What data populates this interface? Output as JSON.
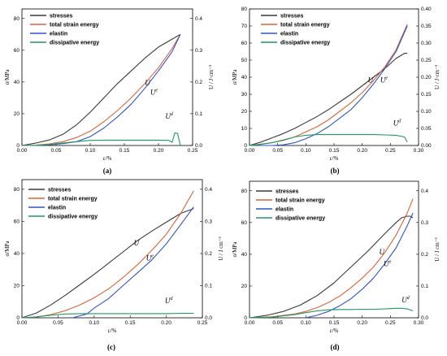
{
  "chart_data": [
    {
      "panel_label": "(a)",
      "type": "line",
      "x_label": "ε/%",
      "y_left_label": "σ/MPa",
      "y_right_label": "U / J·cm⁻³",
      "x_ticks": [
        0.0,
        0.05,
        0.1,
        0.15,
        0.2,
        0.25
      ],
      "x_tick_labels": [
        "0.00",
        "0.05",
        "0.10",
        "0.15",
        "0.20",
        "0.25"
      ],
      "y_left_ticks": [
        0,
        20,
        40,
        60,
        80
      ],
      "y_left_tick_labels": [
        "0",
        "20",
        "40",
        "60",
        "80"
      ],
      "y_right_ticks": [
        0.0,
        0.1,
        0.2,
        0.3,
        0.4
      ],
      "y_right_tick_labels": [
        "0.0",
        "0.1",
        "0.2",
        "0.3",
        "0.4"
      ],
      "xlim": [
        0,
        0.25
      ],
      "ylim_left": [
        0,
        86
      ],
      "ylim_right": [
        0,
        0.43
      ],
      "legend": [
        "stresses",
        "total strain energy",
        "elastin",
        "dissipative energy"
      ],
      "curve_labels": [
        {
          "text": "U",
          "x": 0.18,
          "y": 0.19
        },
        {
          "text": "Ue",
          "x": 0.188,
          "y": 0.16
        },
        {
          "text": "Ud",
          "x": 0.21,
          "y": 0.084
        }
      ],
      "series": [
        {
          "name": "stresses",
          "axis": "left",
          "color": "#3a3a3a",
          "x": [
            0,
            0.02,
            0.04,
            0.06,
            0.08,
            0.1,
            0.12,
            0.14,
            0.16,
            0.18,
            0.2,
            0.22,
            0.232
          ],
          "y": [
            0,
            1.5,
            3.5,
            7,
            13,
            21,
            30,
            39,
            47,
            55,
            62,
            67,
            70
          ]
        },
        {
          "name": "total strain energy",
          "axis": "right",
          "color": "#d9643a",
          "x": [
            0,
            0.02,
            0.04,
            0.06,
            0.08,
            0.1,
            0.12,
            0.14,
            0.16,
            0.18,
            0.2,
            0.22,
            0.232
          ],
          "y": [
            0,
            0.001,
            0.005,
            0.012,
            0.025,
            0.045,
            0.075,
            0.11,
            0.15,
            0.195,
            0.245,
            0.305,
            0.35
          ]
        },
        {
          "name": "elastin",
          "axis": "right",
          "color": "#2f55c9",
          "x": [
            0,
            0.02,
            0.04,
            0.06,
            0.08,
            0.1,
            0.12,
            0.14,
            0.16,
            0.18,
            0.2,
            0.22,
            0.232
          ],
          "y": [
            0,
            0.0,
            0.002,
            0.006,
            0.012,
            0.028,
            0.055,
            0.09,
            0.13,
            0.18,
            0.235,
            0.295,
            0.35
          ]
        },
        {
          "name": "dissipative energy",
          "axis": "right",
          "color": "#1f9a60",
          "x": [
            0,
            0.02,
            0.04,
            0.06,
            0.08,
            0.1,
            0.12,
            0.14,
            0.16,
            0.18,
            0.2,
            0.215,
            0.22,
            0.224,
            0.228,
            0.232
          ],
          "y": [
            0,
            0.0,
            0.003,
            0.008,
            0.012,
            0.016,
            0.017,
            0.017,
            0.017,
            0.017,
            0.017,
            0.016,
            0.01,
            0.04,
            0.038,
            0.0
          ]
        }
      ]
    },
    {
      "panel_label": "(b)",
      "type": "line",
      "x_label": "ε/%",
      "y_left_label": "σ/MPa",
      "y_right_label": "U / J·cm⁻³",
      "x_ticks": [
        0.0,
        0.05,
        0.1,
        0.15,
        0.2,
        0.25,
        0.3
      ],
      "x_tick_labels": [
        "0.00",
        "0.05",
        "0.10",
        "0.15",
        "0.20",
        "0.25",
        "0.30"
      ],
      "y_left_ticks": [
        0,
        10,
        20,
        30,
        40,
        50,
        60,
        70,
        80
      ],
      "y_left_tick_labels": [
        "0",
        "10",
        "20",
        "30",
        "40",
        "50",
        "60",
        "70",
        "80"
      ],
      "y_right_ticks": [
        0.0,
        0.05,
        0.1,
        0.15,
        0.2,
        0.25,
        0.3,
        0.35,
        0.4
      ],
      "y_right_tick_labels": [
        "0.00",
        "0.05",
        "0.10",
        "0.15",
        "0.20",
        "0.25",
        "0.30",
        "0.35",
        "0.40"
      ],
      "xlim": [
        0,
        0.3
      ],
      "ylim_left": [
        0,
        80
      ],
      "ylim_right": [
        0,
        0.4
      ],
      "legend": [
        "stresses",
        "total strain energy",
        "elastin",
        "dissipative energy"
      ],
      "curve_labels": [
        {
          "text": "U",
          "x": 0.21,
          "y": 0.185
        },
        {
          "text": "Ue",
          "x": 0.232,
          "y": 0.185
        },
        {
          "text": "Ud",
          "x": 0.255,
          "y": 0.058
        }
      ],
      "series": [
        {
          "name": "stresses",
          "axis": "left",
          "color": "#3a3a3a",
          "x": [
            0,
            0.02,
            0.04,
            0.06,
            0.08,
            0.1,
            0.12,
            0.14,
            0.16,
            0.18,
            0.2,
            0.22,
            0.24,
            0.26,
            0.275,
            0.28
          ],
          "y": [
            0,
            2,
            4.5,
            7,
            10,
            13.5,
            17,
            21,
            25.5,
            30,
            35,
            40,
            45,
            51,
            54,
            54
          ]
        },
        {
          "name": "total strain energy",
          "axis": "right",
          "color": "#d9643a",
          "x": [
            0,
            0.04,
            0.08,
            0.1,
            0.12,
            0.14,
            0.16,
            0.18,
            0.2,
            0.22,
            0.24,
            0.26,
            0.28
          ],
          "y": [
            0,
            0.008,
            0.025,
            0.04,
            0.055,
            0.075,
            0.1,
            0.125,
            0.155,
            0.19,
            0.23,
            0.28,
            0.355
          ]
        },
        {
          "name": "elastin",
          "axis": "right",
          "color": "#2f55c9",
          "x": [
            0,
            0.04,
            0.06,
            0.08,
            0.1,
            0.12,
            0.14,
            0.16,
            0.18,
            0.2,
            0.22,
            0.24,
            0.26,
            0.28
          ],
          "y": [
            0,
            0.0,
            0.002,
            0.008,
            0.02,
            0.035,
            0.055,
            0.08,
            0.105,
            0.14,
            0.18,
            0.225,
            0.275,
            0.35
          ]
        },
        {
          "name": "dissipative energy",
          "axis": "right",
          "color": "#1f9a60",
          "x": [
            0,
            0.02,
            0.04,
            0.06,
            0.08,
            0.1,
            0.12,
            0.14,
            0.16,
            0.18,
            0.2,
            0.22,
            0.24,
            0.26,
            0.275,
            0.28
          ],
          "y": [
            0,
            0.003,
            0.008,
            0.015,
            0.025,
            0.03,
            0.032,
            0.032,
            0.032,
            0.032,
            0.032,
            0.032,
            0.031,
            0.03,
            0.025,
            0.01
          ]
        }
      ]
    },
    {
      "panel_label": "(c)",
      "type": "line",
      "x_label": "ε/%",
      "y_left_label": "σ/MPa",
      "y_right_label": "U / J cm⁻³",
      "x_ticks": [
        0.0,
        0.05,
        0.1,
        0.15,
        0.2,
        0.25
      ],
      "x_tick_labels": [
        "0.00",
        "0.05",
        "0.10",
        "0.15",
        "0.20",
        "0.25"
      ],
      "y_left_ticks": [
        0,
        20,
        40,
        60,
        80
      ],
      "y_left_tick_labels": [
        "0",
        "20",
        "40",
        "60",
        "80"
      ],
      "y_right_ticks": [
        0.0,
        0.1,
        0.2,
        0.3,
        0.4
      ],
      "y_right_tick_labels": [
        "0.0",
        "0.1",
        "0.2",
        "0.3",
        "0.4"
      ],
      "xlim": [
        0,
        0.25
      ],
      "ylim_left": [
        0,
        86
      ],
      "ylim_right": [
        0,
        0.43
      ],
      "legend": [
        "stresses",
        "total strain energy",
        "elastin",
        "dissipative energy"
      ],
      "curve_labels": [
        {
          "text": "U",
          "x": 0.155,
          "y": 0.225
        },
        {
          "text": "Ue",
          "x": 0.172,
          "y": 0.178
        },
        {
          "text": "Ud",
          "x": 0.198,
          "y": 0.045
        }
      ],
      "series": [
        {
          "name": "stresses",
          "axis": "left",
          "color": "#3a3a3a",
          "x": [
            0,
            0.02,
            0.04,
            0.06,
            0.08,
            0.1,
            0.12,
            0.14,
            0.16,
            0.18,
            0.2,
            0.22,
            0.238
          ],
          "y": [
            0,
            3,
            8,
            14,
            20.5,
            27,
            34,
            41,
            48,
            54,
            59.5,
            65,
            68
          ]
        },
        {
          "name": "total strain energy",
          "axis": "right",
          "color": "#d9643a",
          "x": [
            0,
            0.02,
            0.04,
            0.06,
            0.08,
            0.1,
            0.12,
            0.14,
            0.16,
            0.18,
            0.2,
            0.22,
            0.238
          ],
          "y": [
            0,
            0.002,
            0.01,
            0.022,
            0.04,
            0.062,
            0.09,
            0.125,
            0.165,
            0.21,
            0.26,
            0.325,
            0.395
          ]
        },
        {
          "name": "elastin",
          "axis": "right",
          "color": "#2f55c9",
          "x": [
            0.07,
            0.09,
            0.1,
            0.12,
            0.14,
            0.16,
            0.18,
            0.2,
            0.22,
            0.238
          ],
          "y": [
            0,
            0.012,
            0.03,
            0.06,
            0.1,
            0.14,
            0.18,
            0.23,
            0.29,
            0.345
          ]
        },
        {
          "name": "dissipative energy",
          "axis": "right",
          "color": "#1f9a60",
          "x": [
            0,
            0.02,
            0.04,
            0.06,
            0.08,
            0.1,
            0.12,
            0.14,
            0.16,
            0.18,
            0.2,
            0.22,
            0.238
          ],
          "y": [
            0,
            0.003,
            0.008,
            0.012,
            0.013,
            0.013,
            0.013,
            0.013,
            0.013,
            0.013,
            0.013,
            0.014,
            0.014
          ]
        }
      ]
    },
    {
      "panel_label": "(d)",
      "type": "line",
      "x_label": "ε/%",
      "y_left_label": "σ/MPa",
      "y_right_label": "U / J cm⁻³",
      "x_ticks": [
        0.0,
        0.05,
        0.1,
        0.15,
        0.2,
        0.25,
        0.3
      ],
      "x_tick_labels": [
        "0.00",
        "0.05",
        "0.10",
        "0.15",
        "0.20",
        "0.25",
        "0.30"
      ],
      "y_left_ticks": [
        0,
        20,
        40,
        60,
        80
      ],
      "y_left_tick_labels": [
        "0",
        "20",
        "40",
        "60",
        "80"
      ],
      "y_right_ticks": [
        0.0,
        0.1,
        0.2,
        0.3,
        0.4
      ],
      "y_right_tick_labels": [
        "0.0",
        "0.1",
        "0.2",
        "0.3",
        "0.4"
      ],
      "xlim": [
        0,
        0.3
      ],
      "ylim_left": [
        0,
        86
      ],
      "ylim_right": [
        0,
        0.43
      ],
      "legend": [
        "stresses",
        "total strain energy",
        "elastin",
        "dissipative energy"
      ],
      "curve_labels": [
        {
          "text": "U",
          "x": 0.23,
          "y": 0.2
        },
        {
          "text": "Ue",
          "x": 0.238,
          "y": 0.163
        },
        {
          "text": "Ud",
          "x": 0.27,
          "y": 0.048
        }
      ],
      "series": [
        {
          "name": "stresses",
          "axis": "left",
          "color": "#3a3a3a",
          "x": [
            0,
            0.03,
            0.06,
            0.09,
            0.12,
            0.15,
            0.18,
            0.21,
            0.24,
            0.26,
            0.27,
            0.28,
            0.285,
            0.29
          ],
          "y": [
            0,
            1.5,
            4,
            8,
            14,
            22,
            32,
            42,
            53,
            60,
            63,
            64,
            64,
            63
          ]
        },
        {
          "name": "total strain energy",
          "axis": "right",
          "color": "#d9643a",
          "x": [
            0,
            0.04,
            0.08,
            0.1,
            0.12,
            0.14,
            0.16,
            0.18,
            0.2,
            0.22,
            0.24,
            0.26,
            0.28,
            0.29
          ],
          "y": [
            0,
            0.003,
            0.012,
            0.02,
            0.032,
            0.048,
            0.068,
            0.095,
            0.125,
            0.16,
            0.205,
            0.26,
            0.33,
            0.375
          ]
        },
        {
          "name": "elastin",
          "axis": "right",
          "color": "#2f55c9",
          "x": [
            0.1,
            0.12,
            0.14,
            0.16,
            0.18,
            0.2,
            0.22,
            0.24,
            0.26,
            0.28,
            0.29
          ],
          "y": [
            0,
            0.008,
            0.02,
            0.038,
            0.06,
            0.09,
            0.125,
            0.17,
            0.22,
            0.29,
            0.33
          ]
        },
        {
          "name": "dissipative energy",
          "axis": "right",
          "color": "#1f9a60",
          "x": [
            0,
            0.04,
            0.08,
            0.1,
            0.12,
            0.14,
            0.16,
            0.18,
            0.2,
            0.22,
            0.24,
            0.26,
            0.27,
            0.28,
            0.29
          ],
          "y": [
            0,
            0.002,
            0.01,
            0.016,
            0.022,
            0.025,
            0.026,
            0.026,
            0.027,
            0.027,
            0.028,
            0.03,
            0.03,
            0.028,
            0.022
          ]
        }
      ]
    }
  ]
}
